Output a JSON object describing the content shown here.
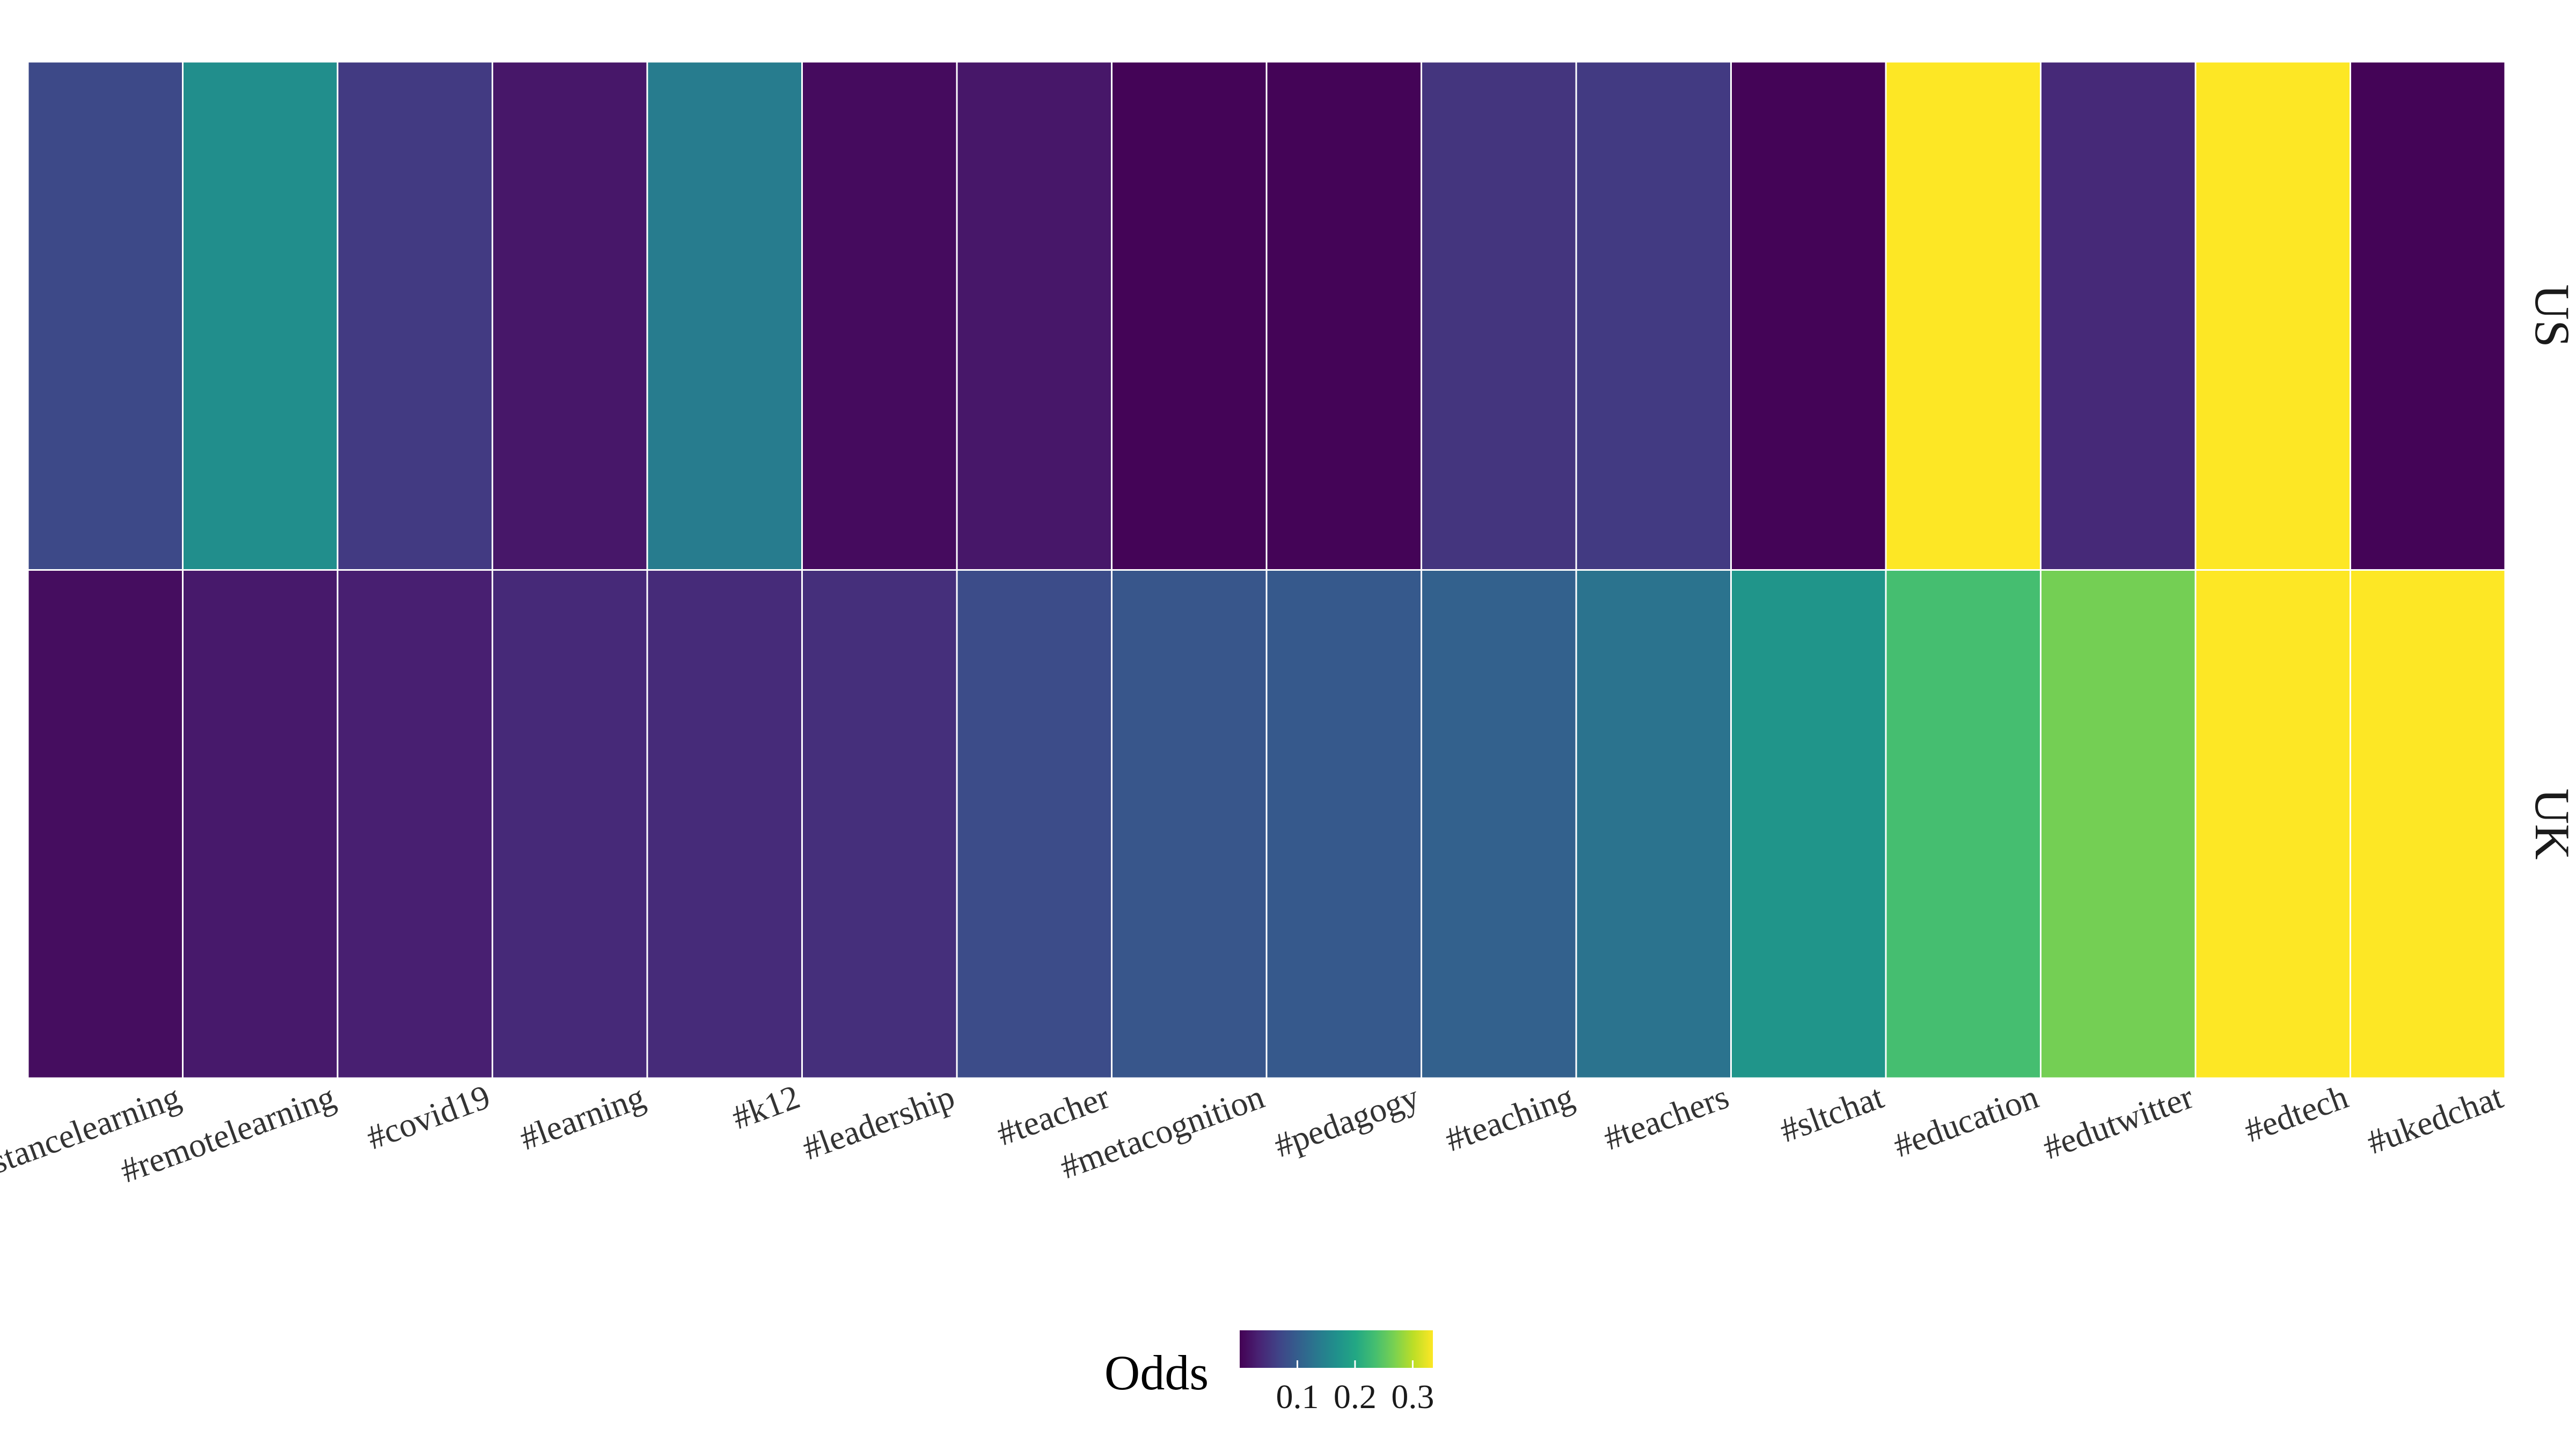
{
  "chart_data": {
    "type": "heatmap",
    "title": "",
    "xlabel": "",
    "ylabel": "",
    "x": [
      "#distancelearning",
      "#remotelearning",
      "#covid19",
      "#learning",
      "#k12",
      "#leadership",
      "#teacher",
      "#metacognition",
      "#pedagogy",
      "#teaching",
      "#teachers",
      "#sltchat",
      "#education",
      "#edutwitter",
      "#edtech",
      "#ukedchat"
    ],
    "y": [
      "US",
      "UK"
    ],
    "values": [
      [
        0.075,
        0.165,
        0.058,
        0.022,
        0.14,
        0.01,
        0.022,
        0.003,
        0.003,
        0.052,
        0.058,
        0.003,
        0.335,
        0.04,
        0.335,
        0.003
      ],
      [
        0.012,
        0.024,
        0.03,
        0.04,
        0.042,
        0.046,
        0.078,
        0.09,
        0.094,
        0.105,
        0.128,
        0.175,
        0.235,
        0.265,
        0.335,
        0.335
      ]
    ],
    "colorbar": {
      "title": "Odds",
      "ticks": [
        0.1,
        0.2,
        0.3
      ],
      "tick_labels": [
        "0.1",
        "0.2",
        "0.3"
      ],
      "range": [
        0.0,
        0.335
      ],
      "colormap": "viridis",
      "position": "bottom"
    }
  }
}
